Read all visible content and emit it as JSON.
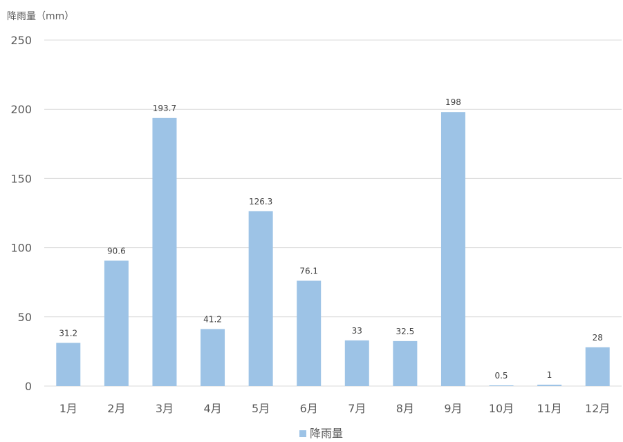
{
  "chart_data": {
    "type": "bar",
    "ylabel": "降雨量（mm）",
    "categories": [
      "1月",
      "2月",
      "3月",
      "4月",
      "5月",
      "6月",
      "7月",
      "8月",
      "9月",
      "10月",
      "11月",
      "12月"
    ],
    "series": [
      {
        "name": "降雨量",
        "values": [
          31.2,
          90.6,
          193.7,
          41.2,
          126.3,
          76.1,
          33,
          32.5,
          198,
          0.5,
          1,
          28
        ]
      }
    ],
    "data_labels": [
      "31.2",
      "90.6",
      "193.7",
      "41.2",
      "126.3",
      "76.1",
      "33",
      "32.5",
      "198",
      "0.5",
      "1",
      "28"
    ],
    "ylim": [
      0,
      250
    ],
    "yticks": [
      0,
      50,
      100,
      150,
      200,
      250
    ],
    "grid": true,
    "legend": "bottom-center",
    "colors": {
      "bar": "#9dc3e6",
      "grid": "#d9d9d9",
      "axis": "#d9d9d9"
    }
  }
}
